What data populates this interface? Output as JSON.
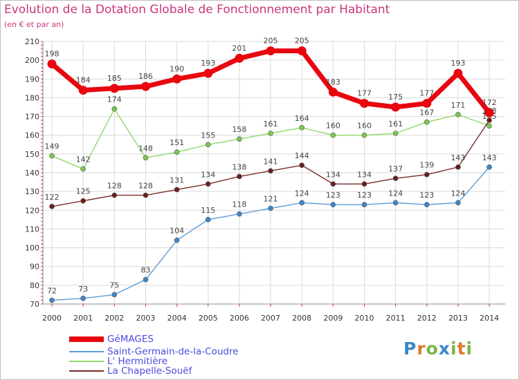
{
  "chart_data": {
    "type": "line",
    "title": "Evolution de la Dotation Globale de Fonctionnement par Habitant",
    "subtitle": "(en € et par an)",
    "x": [
      "2000",
      "2001",
      "2002",
      "2003",
      "2004",
      "2005",
      "2006",
      "2007",
      "2008",
      "2009",
      "2010",
      "2011",
      "2012",
      "2013",
      "2014"
    ],
    "ylim": [
      70,
      210
    ],
    "yticks": [
      "70",
      "80",
      "90",
      "100",
      "110",
      "120",
      "130",
      "140",
      "150",
      "160",
      "170",
      "180",
      "190",
      "200",
      "210"
    ],
    "grid": true,
    "legend_position": "bottom-left",
    "series": [
      {
        "name": "GéMAGES",
        "color": "#e8060f",
        "values": [
          198,
          184,
          185,
          186,
          190,
          193,
          201,
          205,
          205,
          183,
          177,
          175,
          177,
          193,
          172
        ]
      },
      {
        "name": "Saint-Germain-de-la-Coudre",
        "color": "#5a9bd5",
        "values": [
          72,
          73,
          75,
          83,
          104,
          115,
          118,
          121,
          124,
          123,
          123,
          124,
          123,
          124,
          143
        ]
      },
      {
        "name": "L' Hermitière",
        "color": "#8fd86a",
        "values": [
          149,
          142,
          174,
          148,
          151,
          155,
          158,
          161,
          164,
          160,
          160,
          161,
          167,
          171,
          165
        ]
      },
      {
        "name": "La Chapelle-Souëf",
        "color": "#7a2a2a",
        "values": [
          122,
          125,
          128,
          128,
          131,
          134,
          138,
          141,
          144,
          134,
          134,
          137,
          139,
          143,
          168
        ]
      }
    ]
  },
  "legend": {
    "items": [
      {
        "label": "GéMAGES",
        "color": "#e8060f"
      },
      {
        "label": "Saint-Germain-de-la-Coudre",
        "color": "#5a9bd5"
      },
      {
        "label": "L' Hermitière",
        "color": "#8fd86a"
      },
      {
        "label": "La Chapelle-Souëf",
        "color": "#7a2a2a"
      }
    ]
  },
  "brand": {
    "text": "Proxiti",
    "letter_colors": [
      "#3a88c8",
      "#e07a2a",
      "#7ab54a",
      "#3a88c8",
      "#7ab54a",
      "#e07a2a",
      "#7ab54a"
    ]
  }
}
